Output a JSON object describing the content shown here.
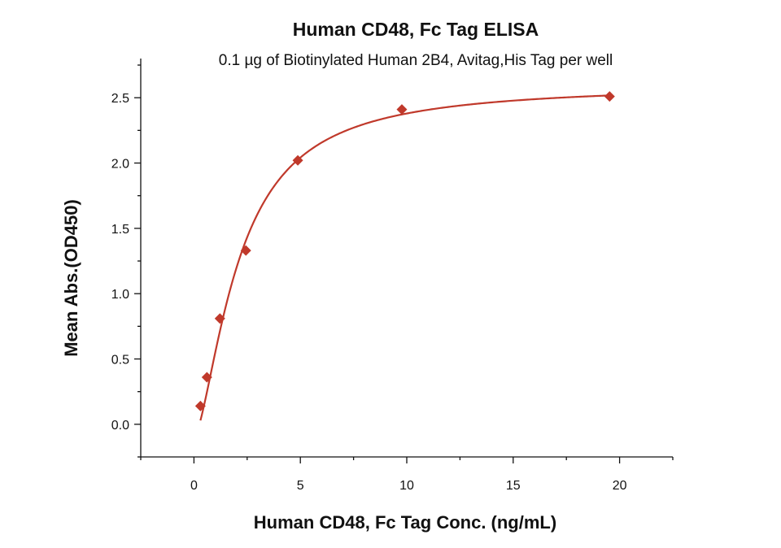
{
  "chart_data": {
    "type": "scatter",
    "title": "Human CD48, Fc Tag ELISA",
    "subtitle": "0.1 µg of Biotinylated Human 2B4, Avitag,His Tag per well",
    "xlabel": "Human CD48, Fc Tag Conc. (ng/mL)",
    "ylabel": "Mean Abs.(OD450)",
    "xlim": [
      -2.5,
      22.5
    ],
    "ylim": [
      -0.25,
      2.8
    ],
    "x_ticks": [
      0,
      5,
      10,
      15,
      20
    ],
    "x_tick_labels": [
      "0",
      "5",
      "10",
      "15",
      "20"
    ],
    "y_ticks": [
      0.0,
      0.5,
      1.0,
      1.5,
      2.0,
      2.5
    ],
    "y_tick_labels": [
      "0.0",
      "0.5",
      "1.0",
      "1.5",
      "2.0",
      "2.5"
    ],
    "grid": false,
    "legend": "none",
    "series": [
      {
        "x": [
          0.305,
          0.61,
          1.22,
          2.44,
          4.88,
          9.77,
          19.53
        ],
        "y": [
          0.14,
          0.36,
          0.81,
          1.33,
          2.02,
          2.41,
          2.51
        ],
        "marker": "diamond",
        "color": "#c0392b"
      }
    ],
    "fit_curve": {
      "type": "4PL",
      "bottom": -0.1,
      "top": 2.6,
      "ec50": 2.1,
      "hill": 1.55,
      "color": "#c0392b"
    }
  }
}
